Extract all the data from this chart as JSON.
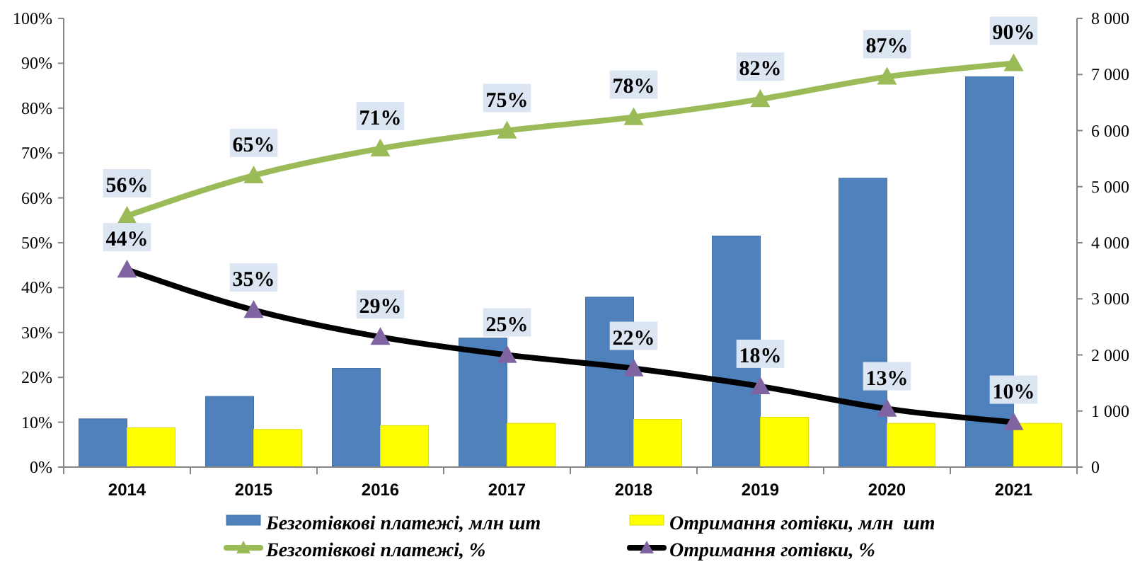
{
  "chart_data": {
    "type": "bar",
    "categories": [
      "2014",
      "2015",
      "2016",
      "2017",
      "2018",
      "2019",
      "2020",
      "2021"
    ],
    "series": [
      {
        "name": "Безготівкові платежі, млн шт",
        "axis": "y2",
        "color": "#4f81bd",
        "values": [
          860,
          1260,
          1760,
          2300,
          3030,
          4120,
          5150,
          6960
        ]
      },
      {
        "name": "Отримання готівки, млн  шт",
        "axis": "y2",
        "color": "#ffff00",
        "values": [
          700,
          670,
          740,
          780,
          850,
          890,
          780,
          780
        ]
      },
      {
        "name": "Безготівкові платежі, %",
        "type": "line",
        "color": "#9bbb59",
        "marker": "triangle",
        "values": [
          56,
          65,
          71,
          75,
          78,
          82,
          87,
          90
        ],
        "value_labels": [
          "56%",
          "65%",
          "71%",
          "75%",
          "78%",
          "82%",
          "87%",
          "90%"
        ]
      },
      {
        "name": "Отримання готівки, %",
        "type": "line",
        "color": "#000000",
        "marker": "triangle",
        "values": [
          44,
          35,
          29,
          25,
          22,
          18,
          13,
          10
        ],
        "value_labels": [
          "44%",
          "35%",
          "29%",
          "25%",
          "22%",
          "18%",
          "13%",
          "10%"
        ]
      }
    ],
    "ylim": [
      0,
      100
    ],
    "yticks": [
      {
        "value": 0,
        "label": "0%"
      },
      {
        "value": 10,
        "label": "10%"
      },
      {
        "value": 20,
        "label": "20%"
      },
      {
        "value": 30,
        "label": "30%"
      },
      {
        "value": 40,
        "label": "40%"
      },
      {
        "value": 50,
        "label": "50%"
      },
      {
        "value": 60,
        "label": "60%"
      },
      {
        "value": 70,
        "label": "70%"
      },
      {
        "value": 80,
        "label": "80%"
      },
      {
        "value": 90,
        "label": "90%"
      },
      {
        "value": 100,
        "label": "100%"
      }
    ],
    "y2lim": [
      0,
      8000
    ],
    "y2ticks": [
      0,
      {
        "value": 1000,
        "label": "1 000"
      },
      {
        "value": 2000,
        "label": "2 000"
      },
      {
        "value": 3000,
        "label": "3 000"
      },
      {
        "value": 4000,
        "label": "4 000"
      },
      {
        "value": 5000,
        "label": "5 000"
      },
      {
        "value": 6000,
        "label": "6 000"
      },
      {
        "value": 7000,
        "label": "7 000"
      },
      {
        "value": 8000,
        "label": "8 000"
      }
    ],
    "legend": "bottom",
    "grid": false
  }
}
